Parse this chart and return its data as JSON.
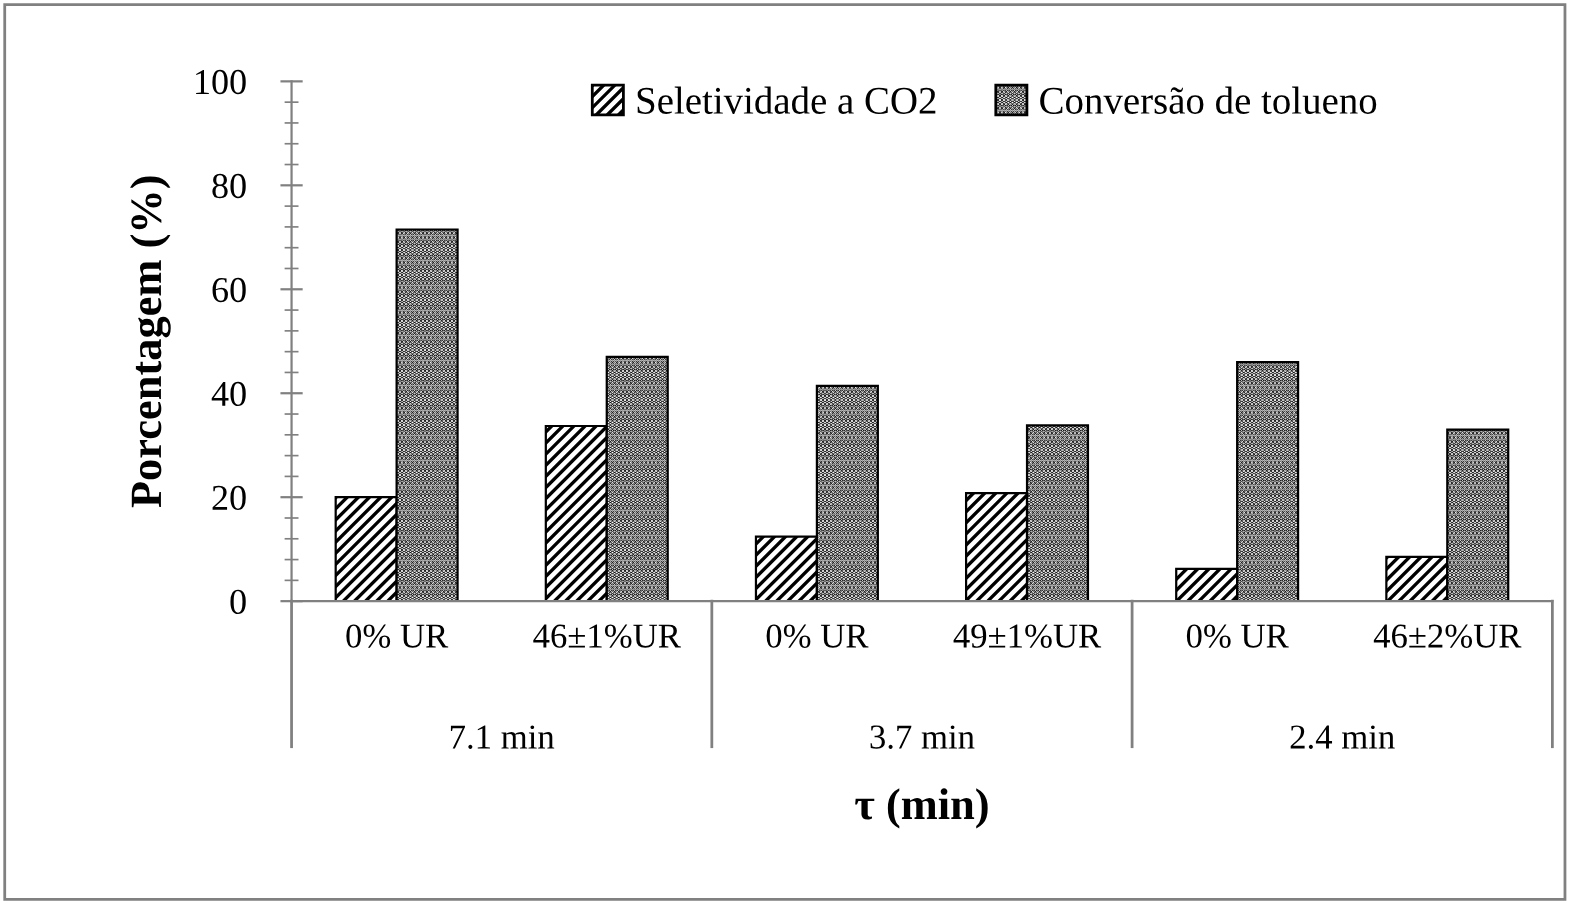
{
  "chart_data": {
    "type": "bar",
    "ylabel": "Porcentagem (%)",
    "xlabel": "τ (min)",
    "categories": [
      "0% UR",
      "46±1%UR",
      "0% UR",
      "49±1%UR",
      "0% UR",
      "46±2%UR"
    ],
    "annotations": [
      "7.1 min",
      "3.7 min",
      "2.4 min"
    ],
    "series": [
      {
        "name": "Seletividade a CO2",
        "color": "#000000",
        "values": [
          20,
          33.7,
          12.4,
          20.8,
          6.2,
          8.5
        ]
      },
      {
        "name": "Conversão de tolueno",
        "color": "#000000",
        "values": [
          71.5,
          47,
          41.4,
          33.8,
          46,
          33
        ]
      }
    ],
    "ylim": [
      0,
      100
    ],
    "yticks": [
      0,
      20,
      40,
      60,
      80,
      100
    ],
    "grid": false,
    "legend": "top"
  }
}
